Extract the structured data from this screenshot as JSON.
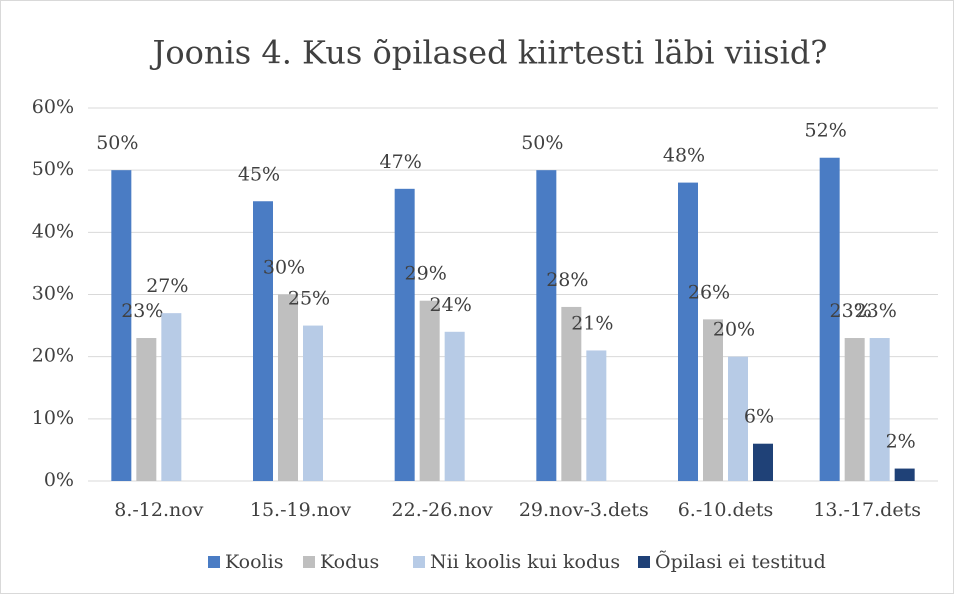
{
  "chart_data": {
    "type": "bar",
    "title": "Joonis 4. Kus õpilased kiirtesti läbi viisid?",
    "categories": [
      "8.-12.nov",
      "15.-19.nov",
      "22.-26.nov",
      "29.nov-3.dets",
      "6.-10.dets",
      "13.-17.dets"
    ],
    "series": [
      {
        "name": "Koolis",
        "color": "#4a7cc4",
        "values": [
          50,
          45,
          47,
          50,
          48,
          52
        ],
        "value_labels": [
          "50%",
          "45%",
          "47%",
          "50%",
          "48%",
          "52%"
        ]
      },
      {
        "name": "Kodus",
        "color": "#bfbfbf",
        "values": [
          23,
          30,
          29,
          28,
          26,
          23
        ],
        "value_labels": [
          "23%",
          "30%",
          "29%",
          "28%",
          "26%",
          "23%"
        ]
      },
      {
        "name": "Nii koolis kui kodus",
        "color": "#b7cbe6",
        "values": [
          27,
          25,
          24,
          21,
          20,
          23
        ],
        "value_labels": [
          "27%",
          "25%",
          "24%",
          "21%",
          "20%",
          "23%"
        ]
      },
      {
        "name": "Õpilasi ei testitud",
        "color": "#1f4177",
        "values": [
          null,
          null,
          null,
          null,
          6,
          2
        ],
        "value_labels": [
          null,
          null,
          null,
          null,
          "6%",
          "2%"
        ]
      }
    ],
    "ylim": [
      0,
      60
    ],
    "yticks": [
      {
        "value": 0,
        "label": "0%"
      },
      {
        "value": 10,
        "label": "10%"
      },
      {
        "value": 20,
        "label": "20%"
      },
      {
        "value": 30,
        "label": "30%"
      },
      {
        "value": 40,
        "label": "40%"
      },
      {
        "value": 50,
        "label": "50%"
      },
      {
        "value": 60,
        "label": "60%"
      }
    ],
    "grid": true,
    "legend": "bottom"
  }
}
